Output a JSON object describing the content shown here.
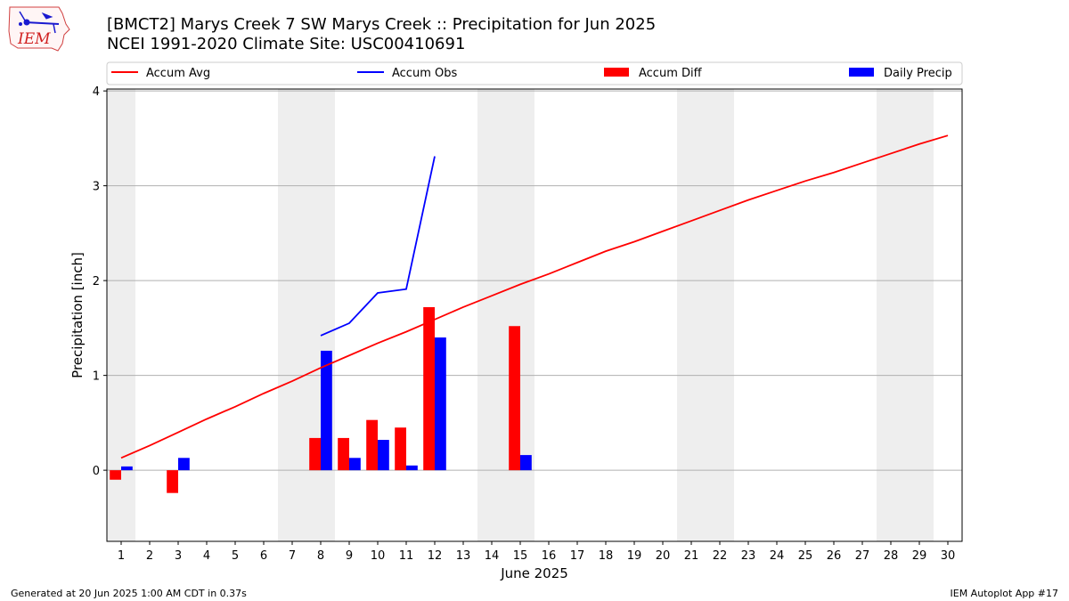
{
  "header": {
    "title_line1": "[BMCT2] Marys Creek 7 SW Marys Creek :: Precipitation for Jun 2025",
    "title_line2": "NCEI 1991-2020 Climate Site: USC00410691"
  },
  "logo": {
    "text": "IEM",
    "icon": "iem-iowa-weather-logo"
  },
  "footer": {
    "left": "Generated at 20 Jun 2025 1:00 AM CDT in 0.37s",
    "right": "IEM Autoplot App #17"
  },
  "chart_data": {
    "type": "bar",
    "xlabel": "June 2025",
    "ylabel": "Precipitation [inch]",
    "ylim": [
      -0.75,
      4.02
    ],
    "xlim": [
      0.5,
      30.5
    ],
    "yticks": [
      0,
      1,
      2,
      3,
      4
    ],
    "grid": true,
    "legend_position": "top",
    "weekend_shading": [
      [
        1,
        1
      ],
      [
        7,
        8
      ],
      [
        14,
        15
      ],
      [
        21,
        22
      ],
      [
        28,
        29
      ]
    ],
    "categories": [
      "1",
      "2",
      "3",
      "4",
      "5",
      "6",
      "7",
      "8",
      "9",
      "10",
      "11",
      "12",
      "13",
      "14",
      "15",
      "16",
      "17",
      "18",
      "19",
      "20",
      "21",
      "22",
      "23",
      "24",
      "25",
      "26",
      "27",
      "28",
      "29",
      "30"
    ],
    "series": [
      {
        "name": "Accum Avg",
        "kind": "line",
        "color": "#ff0000",
        "x": [
          1,
          2,
          3,
          4,
          5,
          6,
          7,
          8,
          9,
          10,
          11,
          12,
          13,
          14,
          15,
          16,
          17,
          18,
          19,
          20,
          21,
          22,
          23,
          24,
          25,
          26,
          27,
          28,
          29,
          30
        ],
        "values": [
          0.13,
          0.26,
          0.4,
          0.54,
          0.67,
          0.81,
          0.94,
          1.08,
          1.21,
          1.34,
          1.46,
          1.59,
          1.72,
          1.84,
          1.96,
          2.07,
          2.19,
          2.31,
          2.41,
          2.52,
          2.63,
          2.74,
          2.85,
          2.95,
          3.05,
          3.14,
          3.24,
          3.34,
          3.44,
          3.53
        ]
      },
      {
        "name": "Accum Obs",
        "kind": "line",
        "color": "#0000ff",
        "x": [
          8,
          9,
          10,
          11,
          12
        ],
        "values": [
          1.42,
          1.55,
          1.87,
          1.91,
          3.31
        ]
      },
      {
        "name": "Accum Diff",
        "kind": "bar",
        "color": "#ff0000",
        "x": [
          1,
          3,
          8,
          9,
          10,
          11,
          12,
          15
        ],
        "values": [
          -0.1,
          -0.24,
          0.34,
          0.34,
          0.53,
          0.45,
          1.72,
          1.52
        ]
      },
      {
        "name": "Daily Precip",
        "kind": "bar",
        "color": "#0000ff",
        "x": [
          1,
          3,
          8,
          9,
          10,
          11,
          12,
          15
        ],
        "values": [
          0.04,
          0.13,
          1.26,
          0.13,
          0.32,
          0.05,
          1.4,
          0.16
        ]
      }
    ]
  }
}
